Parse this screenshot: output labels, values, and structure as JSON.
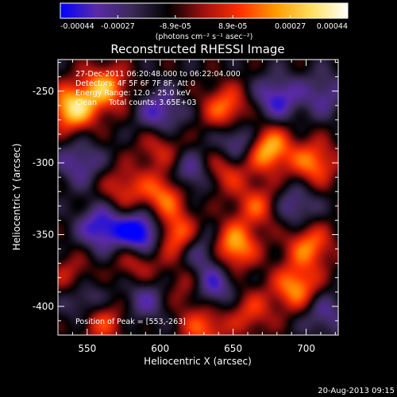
{
  "chart_data": {
    "type": "heatmap",
    "title": "Reconstructed RHESSI Image",
    "xlabel": "Heliocentric X (arcsec)",
    "ylabel": "Heliocentric Y (arcsec)",
    "xlim": [
      530,
      722
    ],
    "ylim": [
      -420,
      -228
    ],
    "xticks": [
      550,
      600,
      650,
      700
    ],
    "yticks": [
      -250,
      -300,
      -350,
      -400
    ],
    "colorbar": {
      "tick_labels": [
        "-0.00044",
        "-0.00027",
        "-8.9e-05",
        "8.9e-05",
        "0.00027",
        "0.00044"
      ],
      "range": [
        -0.00044,
        0.00044
      ],
      "unit_label": "(photons cm⁻² s⁻¹ asec⁻²)",
      "colors": [
        "#0000ff",
        "#5a2aa8",
        "#3a2a55",
        "#000000",
        "#a01010",
        "#ff3000",
        "#ff9a00",
        "#ffe060",
        "#ffffff"
      ]
    },
    "annotations": [
      "27-Dec-2011 06:20:48.000 to 06:22:04.000",
      "Detectors: 4F 5F 6F 7F 8F, Att 0",
      "Energy Range: 12.0 - 25.0 keV",
      "Clean     Total counts: 3.65E+03"
    ],
    "peak_label": "Position of Peak = [553,-263]",
    "peak": [
      553,
      -263
    ],
    "bright_regions": [
      {
        "x": 540,
        "y": -262,
        "value": 0.00044
      },
      {
        "x": 562,
        "y": -248,
        "value": 0.00036
      },
      {
        "x": 673,
        "y": -290,
        "value": 0.00044
      },
      {
        "x": 645,
        "y": -262,
        "value": 0.0003
      },
      {
        "x": 603,
        "y": -322,
        "value": 0.0003
      },
      {
        "x": 610,
        "y": -350,
        "value": 0.00034
      },
      {
        "x": 650,
        "y": -358,
        "value": 0.0004
      },
      {
        "x": 667,
        "y": -330,
        "value": 0.00024
      },
      {
        "x": 705,
        "y": -300,
        "value": 0.0003
      },
      {
        "x": 702,
        "y": -358,
        "value": 0.0003
      },
      {
        "x": 693,
        "y": -387,
        "value": 0.00034
      },
      {
        "x": 645,
        "y": -305,
        "value": 0.00022
      },
      {
        "x": 575,
        "y": -318,
        "value": 0.0002
      },
      {
        "x": 560,
        "y": -410,
        "value": 0.00024
      },
      {
        "x": 540,
        "y": -380,
        "value": 0.00018
      },
      {
        "x": 630,
        "y": -415,
        "value": 0.00026
      },
      {
        "x": 662,
        "y": -404,
        "value": 0.0002
      },
      {
        "x": 620,
        "y": -388,
        "value": 0.00018
      },
      {
        "x": 600,
        "y": -290,
        "value": 0.00018
      },
      {
        "x": 585,
        "y": -368,
        "value": 0.00022
      },
      {
        "x": 560,
        "y": -345,
        "value": -0.0003
      },
      {
        "x": 588,
        "y": -350,
        "value": -0.00044
      },
      {
        "x": 630,
        "y": -360,
        "value": -0.00022
      },
      {
        "x": 635,
        "y": -387,
        "value": -0.00028
      },
      {
        "x": 600,
        "y": -265,
        "value": -0.00024
      },
      {
        "x": 620,
        "y": -308,
        "value": -0.00022
      },
      {
        "x": 680,
        "y": -255,
        "value": -0.00026
      },
      {
        "x": 692,
        "y": -330,
        "value": -0.0002
      },
      {
        "x": 655,
        "y": -286,
        "value": -0.0003
      },
      {
        "x": 545,
        "y": -300,
        "value": -0.0002
      },
      {
        "x": 548,
        "y": -395,
        "value": -0.00022
      },
      {
        "x": 590,
        "y": -395,
        "value": -0.00018
      },
      {
        "x": 712,
        "y": -252,
        "value": -0.00018
      },
      {
        "x": 712,
        "y": -405,
        "value": -0.00018
      }
    ]
  },
  "footer": {
    "timestamp": "20-Aug-2013 09:15"
  }
}
